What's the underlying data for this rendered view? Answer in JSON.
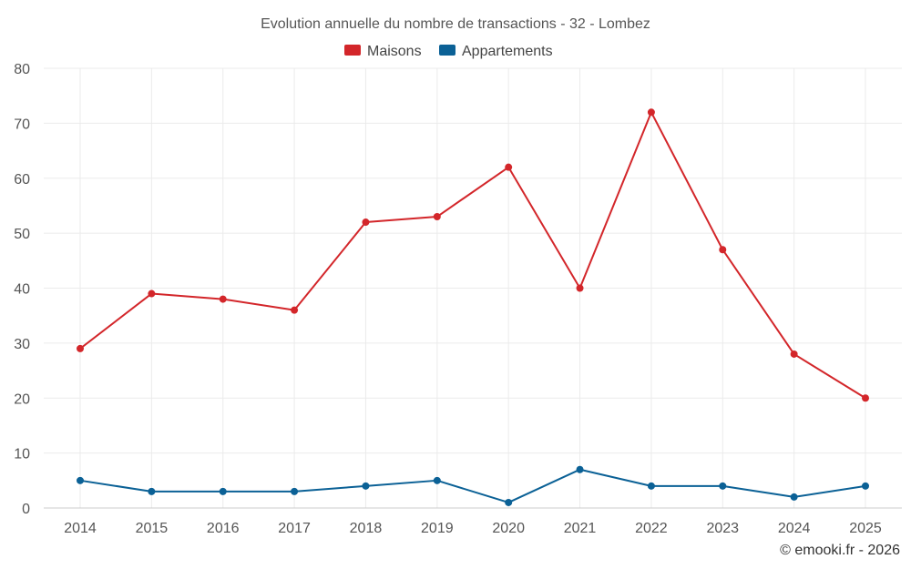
{
  "chart_data": {
    "type": "line",
    "title": "Evolution annuelle du nombre de transactions - 32 - Lombez",
    "categories": [
      "2014",
      "2015",
      "2016",
      "2017",
      "2018",
      "2019",
      "2020",
      "2021",
      "2022",
      "2023",
      "2024",
      "2025"
    ],
    "series": [
      {
        "name": "Maisons",
        "color": "#d3262a",
        "values": [
          29,
          39,
          38,
          36,
          52,
          53,
          62,
          40,
          72,
          47,
          28,
          20
        ]
      },
      {
        "name": "Appartements",
        "color": "#0b6196",
        "values": [
          5,
          3,
          3,
          3,
          4,
          5,
          1,
          7,
          4,
          4,
          2,
          4
        ]
      }
    ],
    "ylim": [
      0,
      80
    ],
    "yticks": [
      "0",
      "10",
      "20",
      "30",
      "40",
      "50",
      "60",
      "70",
      "80"
    ],
    "grid": true,
    "legend_position": "top-center",
    "xlabel": "",
    "ylabel": ""
  },
  "credit": "© emooki.fr - 2026"
}
